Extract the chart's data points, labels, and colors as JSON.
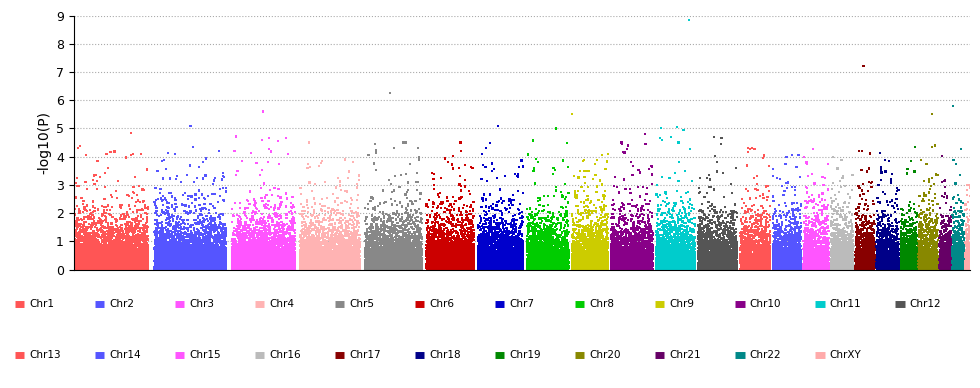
{
  "title": "",
  "ylabel": "-log10(P)",
  "ylim": [
    0,
    9
  ],
  "yticks": [
    0,
    1,
    2,
    3,
    4,
    5,
    6,
    7,
    8,
    9
  ],
  "background_color": "#ffffff",
  "plot_bg": "#f0f0f0",
  "chromosomes": [
    {
      "name": "Chr1",
      "color": "#FF5555",
      "n_snps": 5000,
      "max_signal": 4.5,
      "peak": 4.85
    },
    {
      "name": "Chr2",
      "color": "#5555FF",
      "n_snps": 4800,
      "max_signal": 4.4,
      "peak": 5.1
    },
    {
      "name": "Chr3",
      "color": "#FF55FF",
      "n_snps": 4200,
      "max_signal": 4.8,
      "peak": 5.6
    },
    {
      "name": "Chr4",
      "color": "#FFB3B3",
      "n_snps": 4000,
      "max_signal": 4.2,
      "peak": 4.5
    },
    {
      "name": "Chr5",
      "color": "#888888",
      "n_snps": 3800,
      "max_signal": 4.5,
      "peak": 6.25
    },
    {
      "name": "Chr6",
      "color": "#CC0000",
      "n_snps": 3200,
      "max_signal": 4.2,
      "peak": 4.5
    },
    {
      "name": "Chr7",
      "color": "#0000CC",
      "n_snps": 3000,
      "max_signal": 4.5,
      "peak": 5.1
    },
    {
      "name": "Chr8",
      "color": "#00CC00",
      "n_snps": 2800,
      "max_signal": 4.8,
      "peak": 5.0
    },
    {
      "name": "Chr9",
      "color": "#CCCC00",
      "n_snps": 2400,
      "max_signal": 4.2,
      "peak": 5.5
    },
    {
      "name": "Chr10",
      "color": "#880088",
      "n_snps": 2800,
      "max_signal": 4.5,
      "peak": 4.8
    },
    {
      "name": "Chr11",
      "color": "#00CCCC",
      "n_snps": 2600,
      "max_signal": 5.2,
      "peak": 8.85
    },
    {
      "name": "Chr12",
      "color": "#555555",
      "n_snps": 2600,
      "max_signal": 4.7,
      "peak": 4.7
    },
    {
      "name": "Chr13",
      "color": "#FF5555",
      "n_snps": 2000,
      "max_signal": 4.3,
      "peak": 4.3
    },
    {
      "name": "Chr14",
      "color": "#5555FF",
      "n_snps": 1900,
      "max_signal": 4.1,
      "peak": 4.1
    },
    {
      "name": "Chr15",
      "color": "#FF55FF",
      "n_snps": 1700,
      "max_signal": 4.5,
      "peak": 4.5
    },
    {
      "name": "Chr16",
      "color": "#BBBBBB",
      "n_snps": 1500,
      "max_signal": 4.0,
      "peak": 4.0
    },
    {
      "name": "Chr17",
      "color": "#880000",
      "n_snps": 1300,
      "max_signal": 4.2,
      "peak": 7.2
    },
    {
      "name": "Chr18",
      "color": "#000088",
      "n_snps": 1500,
      "max_signal": 4.2,
      "peak": 4.2
    },
    {
      "name": "Chr19",
      "color": "#008800",
      "n_snps": 1100,
      "max_signal": 4.8,
      "peak": 4.8
    },
    {
      "name": "Chr20",
      "color": "#888800",
      "n_snps": 1300,
      "max_signal": 4.6,
      "peak": 5.5
    },
    {
      "name": "Chr21",
      "color": "#660066",
      "n_snps": 800,
      "max_signal": 4.2,
      "peak": 4.2
    },
    {
      "name": "Chr22",
      "color": "#008888",
      "n_snps": 800,
      "max_signal": 4.5,
      "peak": 5.8
    },
    {
      "name": "ChrXY",
      "color": "#FFAAAA",
      "n_snps": 300,
      "max_signal": 3.0,
      "peak": 3.0
    }
  ],
  "legend_colors": {
    "Chr1": "#FF5555",
    "Chr2": "#5555FF",
    "Chr3": "#FF55FF",
    "Chr4": "#FFB3B3",
    "Chr5": "#888888",
    "Chr6": "#CC0000",
    "Chr7": "#0000CC",
    "Chr8": "#00CC00",
    "Chr9": "#CCCC00",
    "Chr10": "#880088",
    "Chr11": "#00CCCC",
    "Chr12": "#555555",
    "Chr13": "#FF5555",
    "Chr14": "#5555FF",
    "Chr15": "#FF55FF",
    "Chr16": "#BBBBBB",
    "Chr17": "#880000",
    "Chr18": "#000088",
    "Chr19": "#008800",
    "Chr20": "#888800",
    "Chr21": "#660066",
    "Chr22": "#008888",
    "ChrXY": "#FFAAAA"
  }
}
